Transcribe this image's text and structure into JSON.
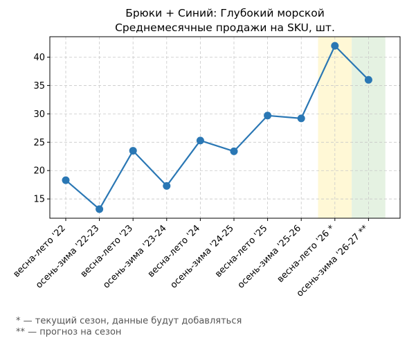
{
  "chart_data": {
    "type": "line",
    "title": "Брюки + Синий: Глубокий морской",
    "subtitle": "Среднемесячные продажи на SKU, шт.",
    "xlabel": "",
    "ylabel": "",
    "categories": [
      "весна-лето '22",
      "осень-зима '22-23",
      "весна-лето '23",
      "осень-зима '23-24",
      "весна-лето '24",
      "осень-зима '24-25",
      "весна-лето '25",
      "осень-зима '25-26",
      "весна-лето '26 *",
      "осень-зима '26-27 **"
    ],
    "series": [
      {
        "values": [
          18.3,
          13.2,
          23.5,
          17.3,
          25.3,
          23.4,
          29.7,
          29.2,
          42.0,
          36.0
        ],
        "color": "#2a77b4"
      }
    ],
    "ylim": [
      11.6,
      43.6
    ],
    "yticks": [
      15,
      20,
      25,
      30,
      35,
      40
    ],
    "grid": true,
    "highlights": [
      {
        "category": "весна-лето '26 *",
        "color": "#fff8d6"
      },
      {
        "category": "осень-зима '26-27 **",
        "color": "#e5f2e2"
      }
    ]
  },
  "footnotes": [
    "* — текущий сезон, данные будут добавляться",
    "** — прогноз на сезон"
  ]
}
